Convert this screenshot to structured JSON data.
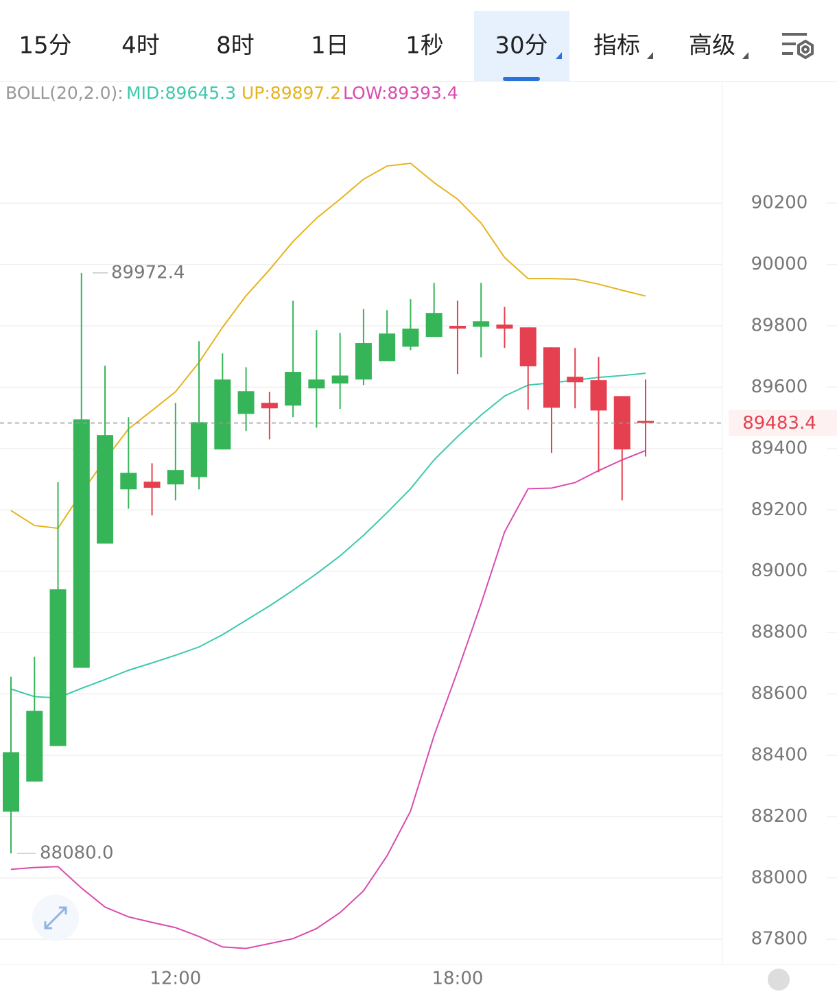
{
  "tabs": [
    "15分",
    "4时",
    "8时",
    "1日",
    "1秒",
    "30分",
    "指标",
    "高级"
  ],
  "chart_data": {
    "type": "candlestick",
    "indicator_label": "BOLL(20,2.0):",
    "categories": [
      null,
      null,
      null,
      null,
      null,
      null,
      null,
      "12:00",
      null,
      null,
      null,
      null,
      null,
      null,
      null,
      null,
      null,
      null,
      null,
      "18:00",
      null,
      null,
      null,
      null,
      null,
      null,
      null,
      null
    ],
    "candles": {
      "open": [
        88216,
        88314,
        88430,
        88685,
        89090,
        89267,
        89292,
        89283,
        89307,
        89397,
        89513,
        89549,
        89540,
        89596,
        89612,
        89625,
        89685,
        89732,
        89764,
        89800,
        89797,
        89804,
        89795,
        89730,
        89634,
        89623,
        89571,
        89490
      ],
      "high": [
        88656,
        88721,
        89290,
        89972.4,
        89670,
        89502,
        89352,
        89549,
        89750,
        89710,
        89665,
        89585,
        89882,
        89786,
        89777,
        89855,
        89851,
        89887,
        89940,
        89882,
        89940,
        89862,
        89795,
        89730,
        89728,
        89699,
        89571,
        89625
      ],
      "low": [
        88080,
        88314,
        88430,
        88685,
        89090,
        89204,
        89182,
        89231,
        89267,
        89397,
        89457,
        89430,
        89502,
        89468,
        89529,
        89607,
        89685,
        89721,
        89764,
        89643,
        89697,
        89728,
        89527,
        89386,
        89531,
        89323,
        89231,
        89374
      ],
      "close": [
        88410,
        88545,
        88941,
        89495,
        89444,
        89321,
        89272,
        89330,
        89486,
        89625,
        89587,
        89531,
        89650,
        89625,
        89638,
        89744,
        89775,
        89791,
        89842,
        89791,
        89815,
        89791,
        89668,
        89533,
        89616,
        89524,
        89397,
        89483.4
      ]
    },
    "up_color": "#36b558",
    "down_color": "#e4404f",
    "series": [
      {
        "name": "MID:89645.3",
        "color": "#3cc9ad",
        "values": [
          88616,
          88591,
          88587,
          88618,
          88647,
          88677,
          88701,
          88726,
          88753,
          88793,
          88840,
          88887,
          88938,
          88992,
          89050,
          89117,
          89191,
          89269,
          89363,
          89439,
          89509,
          89571,
          89607,
          89614,
          89623,
          89632,
          89638,
          89645.3
        ]
      },
      {
        "name": "UP:89897.2",
        "color": "#e6b31e",
        "values": [
          89198,
          89149,
          89140,
          89256,
          89363,
          89464,
          89524,
          89585,
          89681,
          89795,
          89898,
          89983,
          90075,
          90151,
          90213,
          90278,
          90321,
          90330,
          90267,
          90213,
          90135,
          90023,
          89954,
          89954,
          89952,
          89936,
          89916,
          89897.2
        ]
      },
      {
        "name": "LOW:89393.4",
        "color": "#d94bae",
        "values": [
          88028,
          88034,
          88037,
          87967,
          87905,
          87873,
          87855,
          87838,
          87809,
          87775,
          87770,
          87786,
          87802,
          87835,
          87887,
          87958,
          88072,
          88218,
          88464,
          88674,
          88894,
          89128,
          89269,
          89271,
          89289,
          89328,
          89363,
          89393.4
        ]
      }
    ],
    "max_label": {
      "value": 89972.4,
      "label": "89972.4"
    },
    "min_label": {
      "value": 88080,
      "label": "88080.0"
    },
    "last_price": {
      "value": 89483.4,
      "label": "89483.4"
    },
    "ylim": [
      87720,
      90594
    ],
    "yticks": [
      87800,
      88000,
      88200,
      88400,
      88600,
      88800,
      89000,
      89200,
      89400,
      89600,
      89800,
      90000,
      90200
    ],
    "grid": true
  }
}
